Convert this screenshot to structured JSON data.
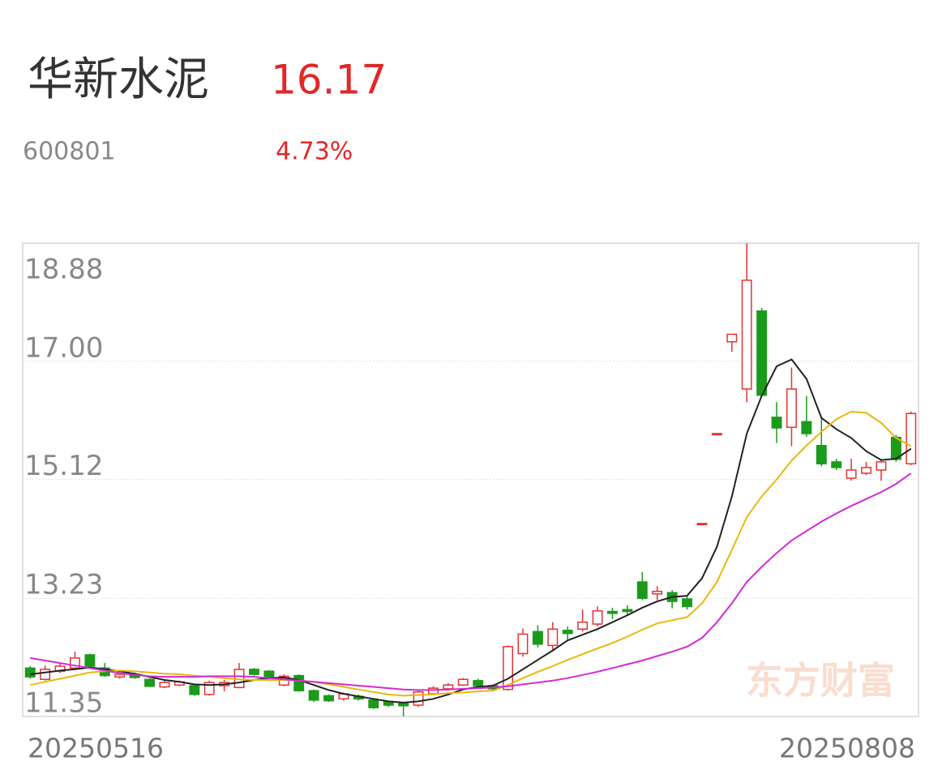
{
  "header": {
    "name": "华新水泥",
    "price": "16.17",
    "code": "600801",
    "change": "4.73%"
  },
  "watermark": "东方财富",
  "chart_data": {
    "type": "candlestick",
    "categories": [
      "20250516",
      null,
      null,
      null,
      null,
      null,
      null,
      null,
      null,
      null,
      null,
      null,
      null,
      null,
      null,
      null,
      null,
      null,
      null,
      null,
      null,
      null,
      null,
      null,
      null,
      null,
      null,
      null,
      null,
      null,
      null,
      null,
      null,
      null,
      null,
      null,
      null,
      null,
      null,
      null,
      null,
      null,
      null,
      null,
      null,
      null,
      null,
      null,
      null,
      null,
      null,
      null,
      null,
      null,
      null,
      null,
      null,
      null,
      null,
      "20250808"
    ],
    "open": [
      12.12,
      11.94,
      12.07,
      12.12,
      12.33,
      12.12,
      11.98,
      12.02,
      11.94,
      11.82,
      11.85,
      11.84,
      11.7,
      11.84,
      11.81,
      12.1,
      12.07,
      11.85,
      12.0,
      11.76,
      11.68,
      11.63,
      11.67,
      11.61,
      11.58,
      11.56,
      11.53,
      11.71,
      11.79,
      11.85,
      11.92,
      11.84,
      11.78,
      12.35,
      12.7,
      12.48,
      12.72,
      12.74,
      12.82,
      13.02,
      13.05,
      13.49,
      13.3,
      13.32,
      13.22,
      14.41,
      15.85,
      17.31,
      16.56,
      17.8,
      16.11,
      15.95,
      16.04,
      15.66,
      15.4,
      15.14,
      15.22,
      15.27,
      15.79,
      15.37
    ],
    "high": [
      12.15,
      12.16,
      12.2,
      12.38,
      12.35,
      12.2,
      12.04,
      12.05,
      11.96,
      11.92,
      11.92,
      11.86,
      11.92,
      11.93,
      12.2,
      12.12,
      12.09,
      12.02,
      12.02,
      11.78,
      11.7,
      11.73,
      11.7,
      11.63,
      11.6,
      11.58,
      11.78,
      11.83,
      11.88,
      11.96,
      11.95,
      11.86,
      12.48,
      12.75,
      12.8,
      12.85,
      12.78,
      13.05,
      13.1,
      13.08,
      13.12,
      13.65,
      13.42,
      13.36,
      13.28,
      14.42,
      15.85,
      17.43,
      18.88,
      17.85,
      16.35,
      16.9,
      16.45,
      16.1,
      15.45,
      15.45,
      15.4,
      15.45,
      15.83,
      16.2
    ],
    "low": [
      11.95,
      11.92,
      12.04,
      12.1,
      12.13,
      11.98,
      11.95,
      11.95,
      11.82,
      11.8,
      11.83,
      11.68,
      11.68,
      11.75,
      11.8,
      12.0,
      11.95,
      11.83,
      11.74,
      11.58,
      11.58,
      11.6,
      11.6,
      11.47,
      11.5,
      11.35,
      11.5,
      11.69,
      11.76,
      11.84,
      11.82,
      11.77,
      11.76,
      12.3,
      12.45,
      12.4,
      12.55,
      12.7,
      12.78,
      12.9,
      12.95,
      13.2,
      13.2,
      13.07,
      13.05,
      14.41,
      15.85,
      17.15,
      16.35,
      16.45,
      15.7,
      15.65,
      15.8,
      15.33,
      15.27,
      15.1,
      15.19,
      15.1,
      15.4,
      15.35
    ],
    "close": [
      11.98,
      12.1,
      12.15,
      12.28,
      12.15,
      12.0,
      12.02,
      11.97,
      11.83,
      11.89,
      11.9,
      11.7,
      11.89,
      11.89,
      12.1,
      12.02,
      11.97,
      11.99,
      11.76,
      11.61,
      11.6,
      11.71,
      11.63,
      11.49,
      11.53,
      11.52,
      11.74,
      11.8,
      11.85,
      11.94,
      11.84,
      11.79,
      12.46,
      12.66,
      12.5,
      12.74,
      12.67,
      12.85,
      13.03,
      12.99,
      13.02,
      13.23,
      13.34,
      13.18,
      13.1,
      14.42,
      15.85,
      17.43,
      18.29,
      16.46,
      15.94,
      16.56,
      15.85,
      15.37,
      15.31,
      15.27,
      15.31,
      15.4,
      15.44,
      16.17
    ],
    "up_color": "#e23434",
    "down_color": "#1c9a1c",
    "series": [
      {
        "color": "#222222",
        "values": [
          12.02,
          12.05,
          12.08,
          12.1,
          12.13,
          12.1,
          12.07,
          12.03,
          11.98,
          11.93,
          11.9,
          11.86,
          11.85,
          11.86,
          11.89,
          11.93,
          11.96,
          11.97,
          11.93,
          11.85,
          11.77,
          11.71,
          11.67,
          11.63,
          11.59,
          11.57,
          11.59,
          11.63,
          11.7,
          11.78,
          11.82,
          11.84,
          11.95,
          12.1,
          12.25,
          12.4,
          12.56,
          12.65,
          12.74,
          12.85,
          12.96,
          13.08,
          13.18,
          13.25,
          13.27,
          13.55,
          14.05,
          14.85,
          15.85,
          16.45,
          16.92,
          17.03,
          16.72,
          16.1,
          15.92,
          15.78,
          15.57,
          15.43,
          15.45,
          15.61
        ]
      },
      {
        "color": "#e8b80c",
        "values": [
          11.85,
          11.9,
          11.95,
          12.0,
          12.05,
          12.07,
          12.08,
          12.07,
          12.05,
          12.03,
          12.02,
          12.0,
          11.98,
          11.96,
          11.94,
          11.93,
          11.93,
          11.93,
          11.92,
          11.9,
          11.86,
          11.82,
          11.78,
          11.74,
          11.7,
          11.68,
          11.69,
          11.7,
          11.72,
          11.73,
          11.75,
          11.76,
          11.85,
          11.96,
          12.06,
          12.15,
          12.25,
          12.34,
          12.43,
          12.52,
          12.62,
          12.73,
          12.83,
          12.88,
          12.93,
          13.15,
          13.49,
          14.0,
          14.52,
          14.85,
          15.12,
          15.42,
          15.66,
          15.88,
          16.08,
          16.2,
          16.18,
          16.02,
          15.78,
          15.65
        ]
      },
      {
        "color": "#d42ad4",
        "values": [
          12.28,
          12.24,
          12.2,
          12.16,
          12.12,
          12.08,
          12.04,
          12.01,
          11.99,
          11.98,
          11.98,
          11.98,
          11.99,
          11.99,
          11.99,
          11.98,
          11.96,
          11.94,
          11.92,
          11.9,
          11.88,
          11.86,
          11.84,
          11.82,
          11.8,
          11.78,
          11.77,
          11.77,
          11.78,
          11.79,
          11.8,
          11.81,
          11.83,
          11.86,
          11.89,
          11.92,
          11.96,
          12.01,
          12.06,
          12.12,
          12.18,
          12.24,
          12.31,
          12.38,
          12.46,
          12.6,
          12.85,
          13.15,
          13.49,
          13.73,
          13.95,
          14.15,
          14.3,
          14.45,
          14.58,
          14.7,
          14.81,
          14.92,
          15.05,
          15.22
        ]
      }
    ],
    "ylim": [
      11.35,
      18.88
    ],
    "yticks": [
      18.88,
      {
        "value": 17,
        "label": "17.00"
      },
      15.12,
      13.23,
      11.35
    ],
    "grid": true
  }
}
